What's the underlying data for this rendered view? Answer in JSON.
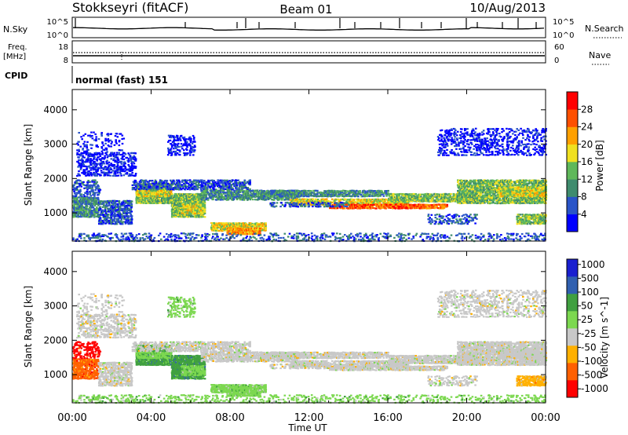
{
  "header": {
    "station": "Stokkseyri (fitACF)",
    "beam": "Beam 01",
    "date": "10/Aug/2013"
  },
  "nsky_panel": {
    "left_label": "N.Sky",
    "right_label": "N.Search",
    "ticks_left": [
      "10^5",
      "10^0"
    ],
    "ticks_right": [
      "10^5",
      "10^0"
    ]
  },
  "freq_panel": {
    "left_label_1": "Freq.",
    "left_label_2": "[MHz]",
    "right_label": "Nave",
    "ticks_left": [
      "18",
      "8"
    ],
    "ticks_right": [
      "60",
      "0"
    ]
  },
  "cpid": {
    "label": "CPID",
    "value": "normal (fast) 151"
  },
  "colors": {
    "power": [
      "#0000ff",
      "#2a55c8",
      "#3f8c6e",
      "#5fb85a",
      "#f0e020",
      "#ffa000",
      "#ff5000",
      "#ff0000"
    ],
    "velocity": [
      "#ff0000",
      "#ff6000",
      "#ffb000",
      "#c8c8c8",
      "#7cd850",
      "#40a040",
      "#3060b0",
      "#1a20d0"
    ]
  },
  "chart_data": [
    {
      "type": "heatmap",
      "name": "power",
      "ylabel": "Slant Range [km]",
      "ylim": [
        180,
        4590
      ],
      "yticks": [
        "1000",
        "2000",
        "3000",
        "4000"
      ],
      "colorbar_label": "Power [dB]",
      "colorbar_ticks": [
        "4",
        "8",
        "12",
        "16",
        "20",
        "24",
        "28"
      ],
      "colorbar_range": [
        0,
        32
      ]
    },
    {
      "type": "heatmap",
      "name": "velocity",
      "ylabel": "Slant Range [km]",
      "ylim": [
        180,
        4590
      ],
      "yticks": [
        "1000",
        "2000",
        "3000",
        "4000"
      ],
      "colorbar_label": "Velocity [m s^-1]",
      "colorbar_ticks": [
        "1000",
        "500",
        "100",
        "50",
        "25",
        "-25",
        "-50",
        "-100",
        "-500",
        "-1000"
      ]
    }
  ],
  "time_axis": {
    "xlabel": "Time UT",
    "ticks": [
      "00:00",
      "04:00",
      "08:00",
      "12:00",
      "16:00",
      "20:00",
      "00:00"
    ],
    "xlim_hours": [
      0,
      24
    ]
  }
}
